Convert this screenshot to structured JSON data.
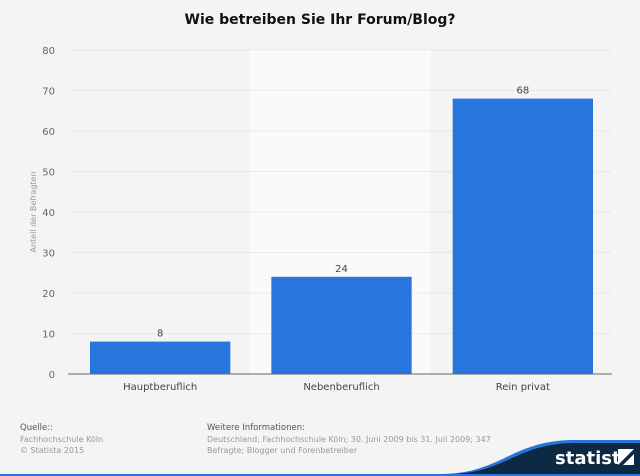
{
  "chart_data": {
    "type": "bar",
    "title": "Wie betreiben Sie Ihr Forum/Blog?",
    "categories": [
      "Hauptberuflich",
      "Nebenberuflich",
      "Rein privat"
    ],
    "values": [
      8,
      24,
      68
    ],
    "xlabel": "",
    "ylabel": "Anteil der Befragten",
    "ylim": [
      0,
      80
    ],
    "yticks": [
      0,
      10,
      20,
      30,
      40,
      50,
      60,
      70,
      80
    ],
    "grid": true,
    "bar_color": "#2876dd"
  },
  "footer": {
    "source_label": "Quelle::",
    "source": "Fachhochschule Köln",
    "copyright": "© Statista 2015",
    "info_label": "Weitere Informationen:",
    "info_line1": "Deutschland; Fachhochschule Köln; 30. Juni 2009 bis 31. Juli 2009; 347",
    "info_line2": "Befragte; Blogger und Forenbetreiber",
    "logo": "statista"
  }
}
